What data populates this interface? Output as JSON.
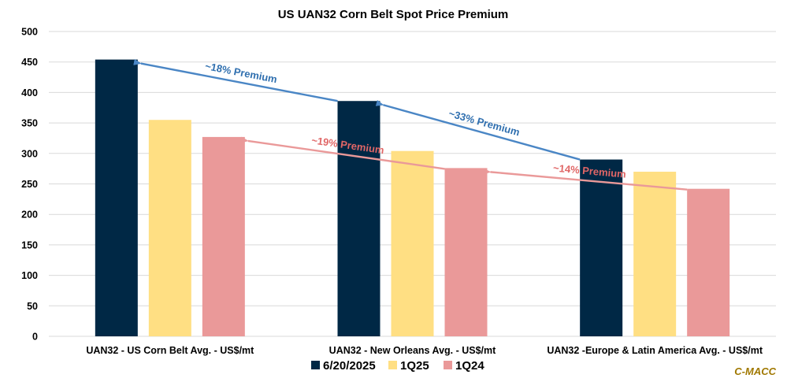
{
  "chart_data": {
    "type": "bar",
    "title": "US UAN32 Corn Belt Spot Price Premium",
    "xlabel": "",
    "ylabel": "",
    "ylim": [
      0,
      500
    ],
    "yticks": [
      0,
      50,
      100,
      150,
      200,
      250,
      300,
      350,
      400,
      450,
      500
    ],
    "grid": true,
    "legend_position": "bottom-center",
    "categories": [
      "UAN32 - US Corn Belt Avg. - US$/mt",
      "UAN32 - New Orleans Avg. - US$/mt",
      "UAN32 -Europe & Latin America Avg. - US$/mt"
    ],
    "series": [
      {
        "name": "6/20/2025",
        "color": "#002845",
        "values": [
          454,
          386,
          290
        ]
      },
      {
        "name": "1Q25",
        "color": "#FFDF83",
        "values": [
          355,
          304,
          270
        ]
      },
      {
        "name": "1Q24",
        "color": "#EA9999",
        "values": [
          327,
          276,
          242
        ]
      }
    ],
    "annotations": [
      {
        "text": "~18% Premium",
        "color": "#2F6FAF",
        "line_color": "#4A86C5",
        "from": {
          "category": 1,
          "series": 0
        },
        "to": {
          "category": 0,
          "series": 0
        }
      },
      {
        "text": "~33% Premium",
        "color": "#2F6FAF",
        "line_color": "#4A86C5",
        "from": {
          "category": 2,
          "series": 0
        },
        "to": {
          "category": 1,
          "series": 0
        }
      },
      {
        "text": "~19% Premium",
        "color": "#E06666",
        "line_color": "#EA9999",
        "from": {
          "category": 1,
          "series": 2
        },
        "to": {
          "category": 0,
          "series": 2
        }
      },
      {
        "text": "~14% Premium",
        "color": "#E06666",
        "line_color": "#EA9999",
        "from": {
          "category": 2,
          "series": 2
        },
        "to": {
          "category": 1,
          "series": 2
        }
      }
    ],
    "source_label": "C-MACC",
    "source_color": "#A07800"
  }
}
